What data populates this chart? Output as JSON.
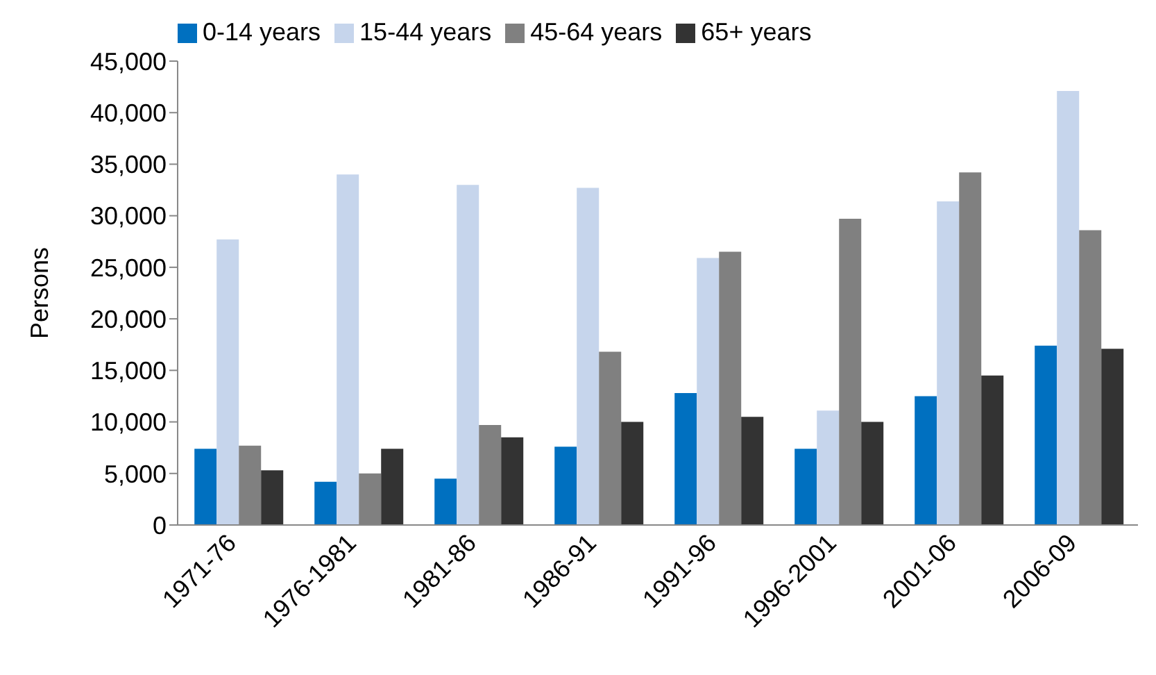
{
  "chart_data": {
    "type": "bar",
    "ylabel": "Persons",
    "categories": [
      "1971-76",
      "1976-1981",
      "1981-86",
      "1986-91",
      "1991-96",
      "1996-2001",
      "2001-06",
      "2006-09"
    ],
    "series": [
      {
        "name": "0-14 years",
        "color": "#0070c0",
        "values": [
          7400,
          4200,
          4500,
          7600,
          12800,
          7400,
          12500,
          17400
        ]
      },
      {
        "name": "15-44 years",
        "color": "#c6d5ec",
        "values": [
          27700,
          34000,
          33000,
          32700,
          25900,
          11100,
          31400,
          42100
        ]
      },
      {
        "name": "45-64 years",
        "color": "#808080",
        "values": [
          7700,
          5000,
          9700,
          16800,
          26500,
          29700,
          34200,
          28600
        ]
      },
      {
        "name": "65+ years",
        "color": "#333333",
        "values": [
          5300,
          7400,
          8500,
          10000,
          10500,
          10000,
          14500,
          17100
        ]
      }
    ],
    "ylim": [
      0,
      45000
    ],
    "yticks": [
      0,
      {
        "value": 5000,
        "label": "5,000"
      },
      {
        "value": 10000,
        "label": "10,000"
      },
      {
        "value": 15000,
        "label": "15,000"
      },
      {
        "value": 20000,
        "label": "20,000"
      },
      {
        "value": 25000,
        "label": "25,000"
      },
      {
        "value": 30000,
        "label": "30,000"
      },
      {
        "value": 35000,
        "label": "35,000"
      },
      {
        "value": 40000,
        "label": "40,000"
      },
      {
        "value": 45000,
        "label": "45,000"
      }
    ],
    "grid": false,
    "legend": "top left"
  }
}
